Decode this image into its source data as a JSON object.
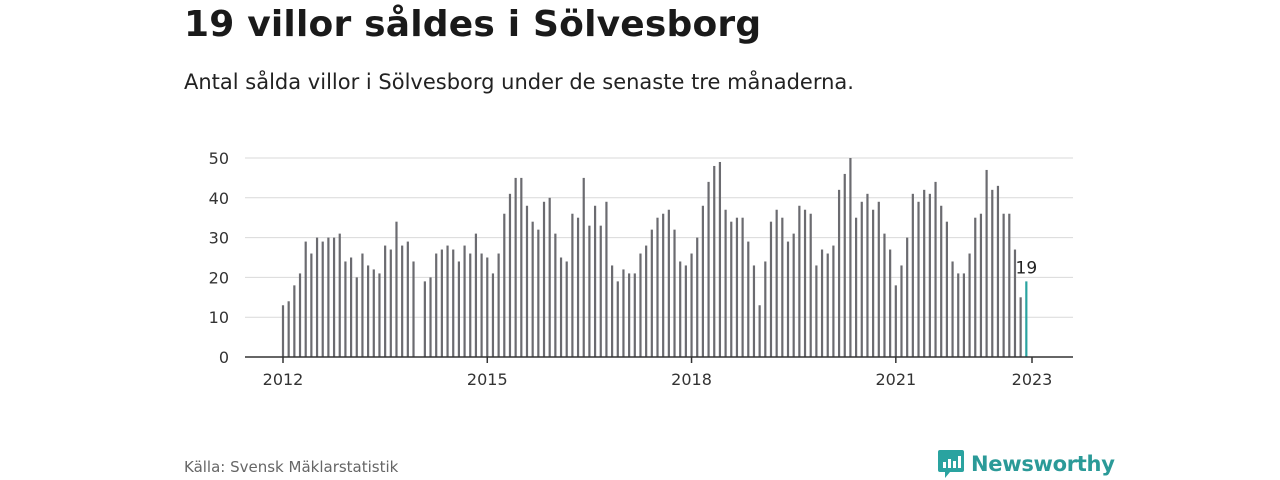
{
  "header": {
    "title": "19 villor såldes i Sölvesborg",
    "subtitle": "Antal sålda villor i Sölvesborg under de senaste tre månaderna."
  },
  "footer": {
    "source": "Källa: Svensk Mäklarstatistik",
    "brand": "Newsworthy"
  },
  "colors": {
    "bar": "#6b6b70",
    "highlight": "#2aa3a0",
    "grid": "#d9d9d9",
    "axis": "#333333"
  },
  "chart_data": {
    "type": "bar",
    "title": "",
    "xlabel": "",
    "ylabel": "",
    "ylim": [
      0,
      50
    ],
    "yticks": [
      0,
      10,
      20,
      30,
      40,
      50
    ],
    "x_tick_labels": [
      "2012",
      "2015",
      "2018",
      "2021",
      "2023"
    ],
    "start": "2012-01",
    "end": "2023-01",
    "grid": true,
    "highlight_label": "19",
    "values": [
      13,
      14,
      18,
      21,
      29,
      26,
      30,
      29,
      30,
      30,
      31,
      24,
      25,
      20,
      26,
      23,
      22,
      21,
      28,
      27,
      34,
      28,
      29,
      24,
      null,
      19,
      20,
      26,
      27,
      28,
      27,
      24,
      28,
      26,
      31,
      26,
      25,
      21,
      26,
      36,
      41,
      45,
      45,
      38,
      34,
      32,
      39,
      40,
      31,
      25,
      24,
      36,
      35,
      45,
      33,
      38,
      33,
      39,
      23,
      19,
      22,
      21,
      21,
      26,
      28,
      32,
      35,
      36,
      37,
      32,
      24,
      23,
      26,
      30,
      38,
      44,
      48,
      49,
      37,
      34,
      35,
      35,
      29,
      23,
      13,
      24,
      34,
      37,
      35,
      29,
      31,
      38,
      37,
      36,
      23,
      27,
      26,
      28,
      42,
      46,
      50,
      35,
      39,
      41,
      37,
      39,
      31,
      27,
      18,
      23,
      30,
      41,
      39,
      42,
      41,
      44,
      38,
      34,
      24,
      21,
      21,
      26,
      35,
      36,
      47,
      42,
      43,
      36,
      36,
      27,
      15,
      19
    ]
  }
}
